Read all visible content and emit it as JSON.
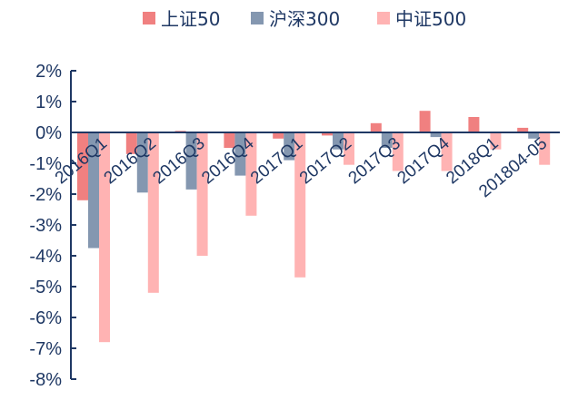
{
  "chart_data": {
    "type": "bar",
    "categories": [
      "2016Q1",
      "2016Q2",
      "2016Q3",
      "2016Q4",
      "2017Q1",
      "2017Q2",
      "2017Q3",
      "2017Q4",
      "2018Q1",
      "201804-05"
    ],
    "series": [
      {
        "name": "上证50",
        "color": "#f08080",
        "values": [
          -2.2,
          -0.7,
          0.05,
          -0.5,
          -0.2,
          -0.1,
          0.3,
          0.7,
          0.5,
          0.15
        ]
      },
      {
        "name": "沪深300",
        "color": "#8497b0",
        "values": [
          -3.75,
          -1.95,
          -1.85,
          -1.4,
          -0.9,
          -0.55,
          -0.5,
          -0.15,
          0.0,
          -0.2
        ]
      },
      {
        "name": "中证500",
        "color": "#ffb3b3",
        "values": [
          -6.8,
          -5.2,
          -4.0,
          -2.7,
          -4.7,
          -1.05,
          -1.25,
          -1.25,
          -0.55,
          -1.05
        ]
      }
    ],
    "y_ticks": [
      "2%",
      "1%",
      "0%",
      "-1%",
      "-2%",
      "-3%",
      "-4%",
      "-5%",
      "-6%",
      "-7%",
      "-8%"
    ],
    "ylim": [
      -8,
      2
    ],
    "legend_position": "top"
  }
}
